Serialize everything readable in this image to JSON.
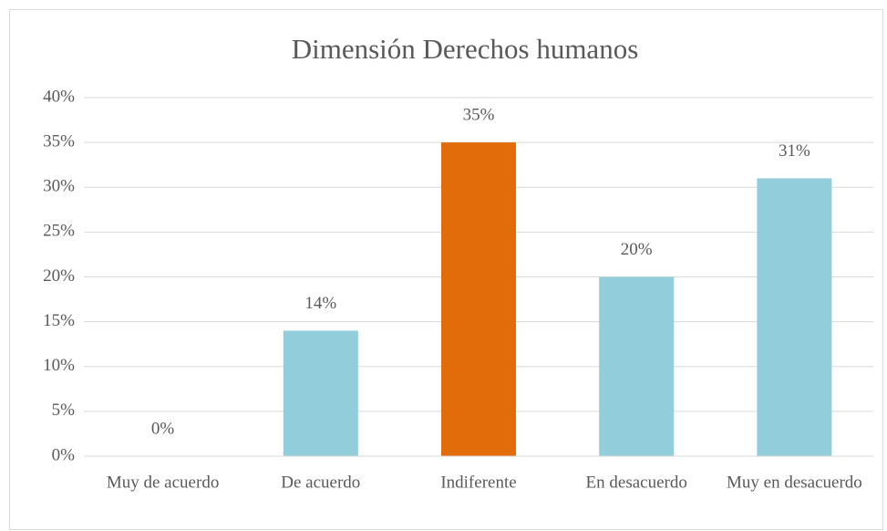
{
  "chart_data": {
    "type": "bar",
    "title": "Dimensión Derechos humanos",
    "categories": [
      "Muy de acuerdo",
      "De acuerdo",
      "Indiferente",
      "En desacuerdo",
      "Muy en desacuerdo"
    ],
    "values": [
      0,
      14,
      35,
      20,
      31
    ],
    "value_labels": [
      "0%",
      "14%",
      "35%",
      "20%",
      "31%"
    ],
    "colors": [
      "#92cddc",
      "#92cddc",
      "#e36c0a",
      "#92cddc",
      "#92cddc"
    ],
    "ylim": [
      0,
      40
    ],
    "yticks": [
      {
        "value": 0,
        "label": "0%"
      },
      {
        "value": 5,
        "label": "5%"
      },
      {
        "value": 10,
        "label": "10%"
      },
      {
        "value": 15,
        "label": "15%"
      },
      {
        "value": 20,
        "label": "20%"
      },
      {
        "value": 25,
        "label": "25%"
      },
      {
        "value": 30,
        "label": "30%"
      },
      {
        "value": 35,
        "label": "35%"
      },
      {
        "value": 40,
        "label": "40%"
      }
    ],
    "grid": true
  }
}
